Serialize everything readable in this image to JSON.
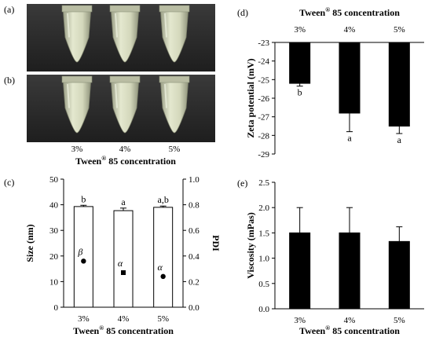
{
  "photo": {
    "labels": [
      "(a)",
      "(b)"
    ],
    "tube_labels": [
      "3%",
      "4%",
      "5%"
    ],
    "xlabel_prefix": "Tween",
    "xlabel_reg": "®",
    "xlabel_suffix": " 85 concentration",
    "colors": {
      "background": "#2a2a2a",
      "tube": "#c9cdb0",
      "liquid": "#d8dcc1"
    }
  },
  "chart_data": [
    {
      "id": "c",
      "panel_label": "(c)",
      "type": "bar",
      "categories": [
        "3%",
        "4%",
        "5%"
      ],
      "values": [
        39.3,
        37.7,
        39.0
      ],
      "errors": [
        0.5,
        1.0,
        0.5
      ],
      "bar_labels": [
        "b",
        "a",
        "a,b"
      ],
      "ylabel": "Size (nm)",
      "ylim": [
        0,
        50
      ],
      "yticks": [
        0,
        10,
        20,
        30,
        40,
        50
      ],
      "bar_color": "#ffffff",
      "secondary": {
        "ylabel": "PDI",
        "ylim": [
          0,
          1.0
        ],
        "yticks": [
          "0.0",
          "0.2",
          "0.4",
          "0.6",
          "0.8",
          "1.0"
        ],
        "values": [
          0.36,
          0.27,
          0.24
        ],
        "labels": [
          "β",
          "α",
          "α"
        ]
      },
      "xlabel_prefix": "Tween",
      "xlabel_reg": "®",
      "xlabel_suffix": " 85 concentration"
    },
    {
      "id": "d",
      "panel_label": "(d)",
      "type": "bar",
      "categories": [
        "3%",
        "4%",
        "5%"
      ],
      "values": [
        -25.2,
        -26.8,
        -27.5
      ],
      "errors": [
        0.15,
        1.0,
        0.4
      ],
      "bar_labels": [
        "b",
        "a",
        "a"
      ],
      "ylabel": "Zeta potential (mV)",
      "ylim": [
        -29,
        -23
      ],
      "yticks": [
        -23,
        -24,
        -25,
        -26,
        -27,
        -28,
        -29
      ],
      "bar_color": "#000000",
      "xlabel_prefix": "Tween",
      "xlabel_reg": "®",
      "xlabel_suffix": " 85 concentration"
    },
    {
      "id": "e",
      "panel_label": "(e)",
      "type": "bar",
      "categories": [
        "3%",
        "4%",
        "5%"
      ],
      "values": [
        1.5,
        1.5,
        1.33
      ],
      "errors": [
        0.5,
        0.5,
        0.29
      ],
      "ylabel": "Viscosity (mPas)",
      "ylim": [
        0,
        2.5
      ],
      "yticks": [
        "0.0",
        "0.5",
        "1.0",
        "1.5",
        "2.0",
        "2.5"
      ],
      "bar_color": "#000000",
      "xlabel_prefix": "Tween",
      "xlabel_reg": "®",
      "xlabel_suffix": " 85 concentration"
    }
  ]
}
